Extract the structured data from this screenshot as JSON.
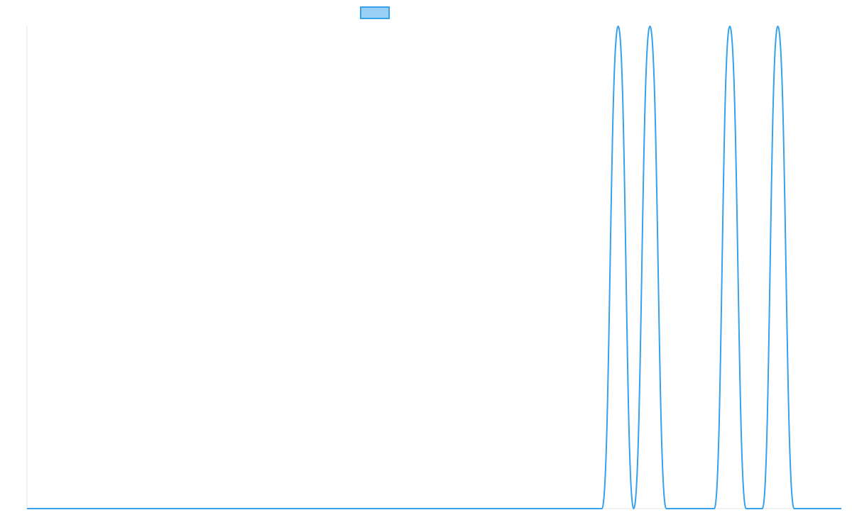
{
  "chart_data": {
    "type": "line",
    "title": "",
    "xlabel": "",
    "ylabel": "",
    "legend": {
      "placement": "top-center",
      "entries": [
        {
          "label": "",
          "stroke": "#36a2eb",
          "fill": "#9ad0f5"
        }
      ]
    },
    "grid": false,
    "xlim": [
      0,
      100
    ],
    "ylim": [
      0,
      1
    ],
    "series": [
      {
        "color": "#36a2eb",
        "points": [
          [
            0,
            0
          ],
          [
            70.6,
            0
          ],
          [
            72.6,
            1
          ],
          [
            74.5,
            0
          ],
          [
            76.5,
            1
          ],
          [
            78.5,
            0
          ],
          [
            84.4,
            0
          ],
          [
            86.3,
            1
          ],
          [
            88.3,
            0
          ],
          [
            90.3,
            0
          ],
          [
            92.2,
            1
          ],
          [
            94.2,
            0
          ],
          [
            100,
            0
          ]
        ]
      }
    ]
  }
}
